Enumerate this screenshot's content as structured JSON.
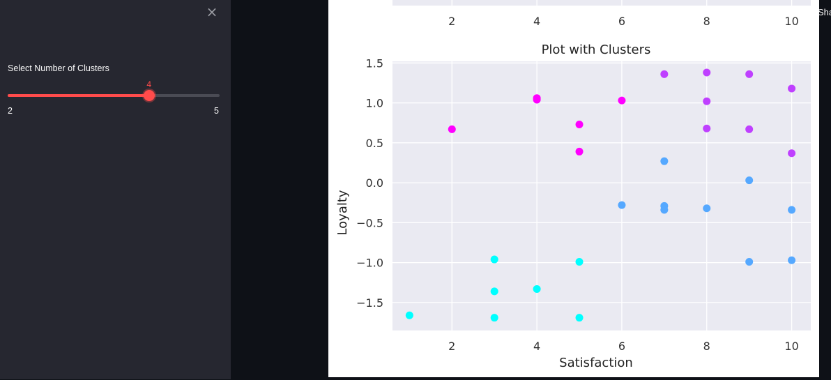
{
  "sidebar": {
    "close_icon": "×",
    "slider": {
      "label": "Select Number of Clusters",
      "min": 2,
      "max": 5,
      "value": 4,
      "min_label": "2",
      "max_label": "5",
      "value_label": "4",
      "accent_color": "#ff4b4b"
    }
  },
  "edge_text": "Sha",
  "top_chart_fragment": {
    "tick_labels": [
      "2",
      "4",
      "6",
      "8",
      "10"
    ],
    "x_ticks": [
      2,
      4,
      6,
      8,
      10
    ]
  },
  "chart_data": {
    "type": "scatter",
    "title": "Plot with Clusters",
    "xlabel": "Satisfaction",
    "ylabel": "Loyalty",
    "xlim": [
      0.6,
      10.45
    ],
    "ylim": [
      -1.85,
      1.52
    ],
    "x_ticks": [
      2,
      4,
      6,
      8,
      10
    ],
    "x_tick_labels": [
      "2",
      "4",
      "6",
      "8",
      "10"
    ],
    "y_ticks": [
      1.5,
      1.0,
      0.5,
      0.0,
      -0.5,
      -1.0,
      -1.5
    ],
    "y_tick_labels": [
      "1.5",
      "1.0",
      "0.5",
      "0.0",
      "−0.5",
      "−1.0",
      "−1.5"
    ],
    "grid": true,
    "background": "#eaeaf2",
    "series": [
      {
        "color": "#00ffff",
        "points": [
          [
            1,
            -1.66
          ],
          [
            3,
            -0.96
          ],
          [
            3,
            -1.36
          ],
          [
            3,
            -1.69
          ],
          [
            4,
            -1.33
          ],
          [
            5,
            -0.99
          ],
          [
            5,
            -1.69
          ]
        ]
      },
      {
        "color": "#ff00ff",
        "points": [
          [
            2,
            0.67
          ],
          [
            4,
            1.06
          ],
          [
            4,
            1.04
          ],
          [
            5,
            0.73
          ],
          [
            5,
            0.39
          ],
          [
            6,
            1.03
          ]
        ]
      },
      {
        "color": "#bf40ff",
        "points": [
          [
            7,
            1.36
          ],
          [
            8,
            1.38
          ],
          [
            8,
            1.02
          ],
          [
            8,
            0.68
          ],
          [
            9,
            1.36
          ],
          [
            9,
            0.67
          ],
          [
            10,
            1.18
          ],
          [
            10,
            0.37
          ]
        ]
      },
      {
        "color": "#55a8ff",
        "points": [
          [
            6,
            -0.28
          ],
          [
            7,
            0.27
          ],
          [
            7,
            -0.29
          ],
          [
            7,
            -0.34
          ],
          [
            8,
            -0.32
          ],
          [
            9,
            0.03
          ],
          [
            9,
            -0.99
          ],
          [
            10,
            -0.34
          ],
          [
            10,
            -0.97
          ]
        ]
      }
    ]
  }
}
